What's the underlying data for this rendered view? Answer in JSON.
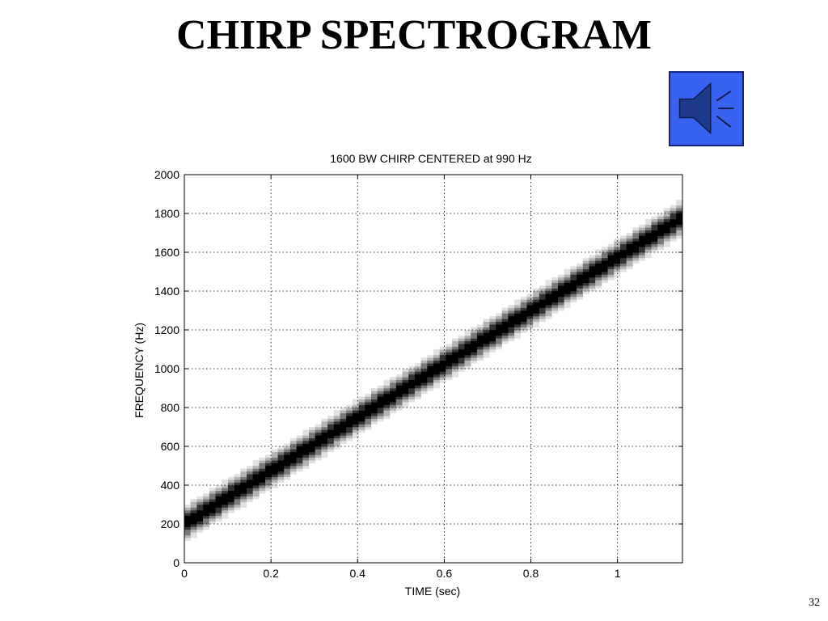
{
  "slide": {
    "title": "CHIRP SPECTROGRAM",
    "page_number": "32"
  },
  "sound_button": {
    "icon": "speaker-icon",
    "fill_color": "#3a62f0",
    "border_color": "#14237a",
    "speaker_color": "#1f3a8a"
  },
  "chart_data": {
    "type": "heatmap",
    "title": "1600 BW CHIRP CENTERED at 990 Hz",
    "xlabel": "TIME (sec)",
    "ylabel": "FREQUENCY (Hz)",
    "xlim": [
      0,
      1.15
    ],
    "ylim": [
      0,
      2000
    ],
    "x_ticks": [
      0,
      0.2,
      0.4,
      0.6,
      0.8,
      1
    ],
    "x_tick_labels": [
      "0",
      "0.2",
      "0.4",
      "0.6",
      "0.8",
      "1"
    ],
    "y_ticks": [
      0,
      200,
      400,
      600,
      800,
      1000,
      1200,
      1400,
      1600,
      1800,
      2000
    ],
    "y_tick_labels": [
      "0",
      "200",
      "400",
      "600",
      "800",
      "1000",
      "1200",
      "1400",
      "1600",
      "1800",
      "2000"
    ],
    "grid": true,
    "colormap": "gray-inverted",
    "chirp": {
      "start": {
        "time": 0,
        "frequency": 200
      },
      "end": {
        "time": 1.15,
        "frequency": 1780
      }
    }
  }
}
